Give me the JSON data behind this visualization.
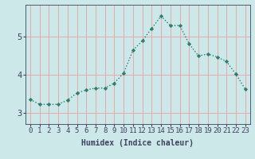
{
  "x": [
    0,
    1,
    2,
    3,
    4,
    5,
    6,
    7,
    8,
    9,
    10,
    11,
    12,
    13,
    14,
    15,
    16,
    17,
    18,
    19,
    20,
    21,
    22,
    23
  ],
  "y": [
    3.35,
    3.22,
    3.22,
    3.22,
    3.33,
    3.52,
    3.6,
    3.65,
    3.65,
    3.78,
    4.05,
    4.65,
    4.9,
    5.23,
    5.55,
    5.3,
    5.3,
    4.82,
    4.5,
    4.55,
    4.47,
    4.35,
    4.02,
    3.62
  ],
  "line_color": "#2e7d6e",
  "marker": "D",
  "marker_size": 2.2,
  "bg_color": "#cce8e8",
  "grid_color": "#e8a8a8",
  "axis_color": "#404060",
  "xlabel": "Humidex (Indice chaleur)",
  "ylim": [
    2.7,
    5.85
  ],
  "xlim": [
    -0.5,
    23.5
  ],
  "yticks": [
    3,
    4,
    5
  ],
  "xticks": [
    0,
    1,
    2,
    3,
    4,
    5,
    6,
    7,
    8,
    9,
    10,
    11,
    12,
    13,
    14,
    15,
    16,
    17,
    18,
    19,
    20,
    21,
    22,
    23
  ],
  "label_fontsize": 7,
  "tick_fontsize": 6.5
}
